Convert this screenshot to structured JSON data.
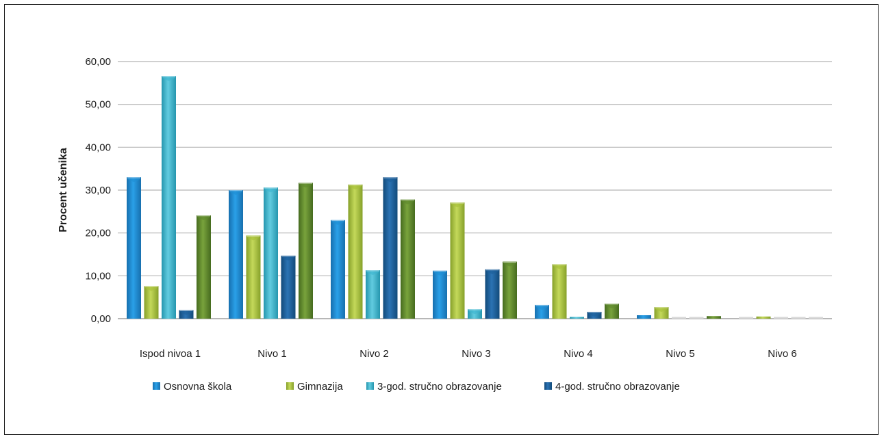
{
  "chart_data": {
    "type": "bar",
    "ylabel": "Procent učenika",
    "ylim": [
      0,
      60
    ],
    "yticks": [
      "0,00",
      "10,00",
      "20,00",
      "30,00",
      "40,00",
      "50,00",
      "60,00"
    ],
    "grid": true,
    "legend_position": "bottom",
    "categories": [
      "Ispod nivoa 1",
      "Nivo 1",
      "Nivo 2",
      "Nivo 3",
      "Nivo 4",
      "Nivo 5",
      "Nivo 6"
    ],
    "series": [
      {
        "name": "Osnovna škola",
        "color": "#1f8fd4",
        "values": [
          33.0,
          30.0,
          23.0,
          11.2,
          3.2,
          0.8,
          0.1
        ]
      },
      {
        "name": "Gimnazija",
        "color": "#a8c03a",
        "values": [
          7.6,
          19.4,
          31.3,
          27.1,
          12.7,
          2.7,
          0.5
        ]
      },
      {
        "name": "3-god. stručno obrazovanje",
        "color": "#3fb6cf",
        "values": [
          56.6,
          30.6,
          11.3,
          2.2,
          0.4,
          0.05,
          0.0
        ]
      },
      {
        "name": "4-god. stručno obrazovanje",
        "color": "#1d5f99",
        "values": [
          2.0,
          14.7,
          33.0,
          11.5,
          1.6,
          0.2,
          0.0
        ]
      },
      {
        "name": "",
        "color": "#5f8a2e",
        "values": [
          24.1,
          31.7,
          27.8,
          13.3,
          3.5,
          0.6,
          0.05
        ]
      }
    ]
  }
}
